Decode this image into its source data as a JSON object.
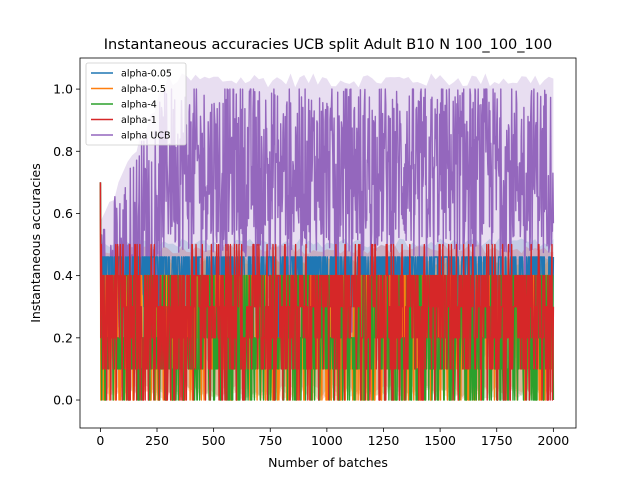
{
  "chart_data": {
    "type": "line",
    "title": "Instantaneous accuracies UCB split Adult B10 N 100_100_100",
    "xlabel": "Number of batches",
    "ylabel": "Instantaneous accuracies",
    "xlim": [
      -90,
      2100
    ],
    "ylim": [
      -0.09,
      1.1
    ],
    "xticks": [
      0,
      250,
      500,
      750,
      1000,
      1250,
      1500,
      1750,
      2000
    ],
    "yticks": [
      0.0,
      0.2,
      0.4,
      0.6,
      0.8,
      1.0
    ],
    "xtick_labels": [
      "0",
      "250",
      "500",
      "750",
      "1000",
      "1250",
      "1500",
      "1750",
      "2000"
    ],
    "ytick_labels": [
      "0.0",
      "0.2",
      "0.4",
      "0.6",
      "0.8",
      "1.0"
    ],
    "grid": false,
    "legend_position": "top-left",
    "n_batches": 2000,
    "series": [
      {
        "name": "alpha-0.05",
        "color": "#1f77b4",
        "typical_low": 0.2,
        "typical_high": 0.46,
        "band": [
          0.1,
          0.52
        ]
      },
      {
        "name": "alpha-0.5",
        "color": "#ff7f0e",
        "typical_low": 0.1,
        "typical_high": 0.4,
        "band": [
          0.0,
          0.46
        ]
      },
      {
        "name": "alpha-4",
        "color": "#2ca02c",
        "typical_low": 0.1,
        "typical_high": 0.4,
        "band": [
          0.0,
          0.46
        ]
      },
      {
        "name": "alpha-1",
        "color": "#d62728",
        "typical_low": 0.0,
        "typical_high": 0.5,
        "band": [
          0.0,
          0.5
        ]
      },
      {
        "name": "alpha UCB",
        "color": "#9467bd",
        "typical_low": 0.55,
        "typical_high": 0.95,
        "band": [
          0.3,
          1.03
        ]
      }
    ]
  }
}
